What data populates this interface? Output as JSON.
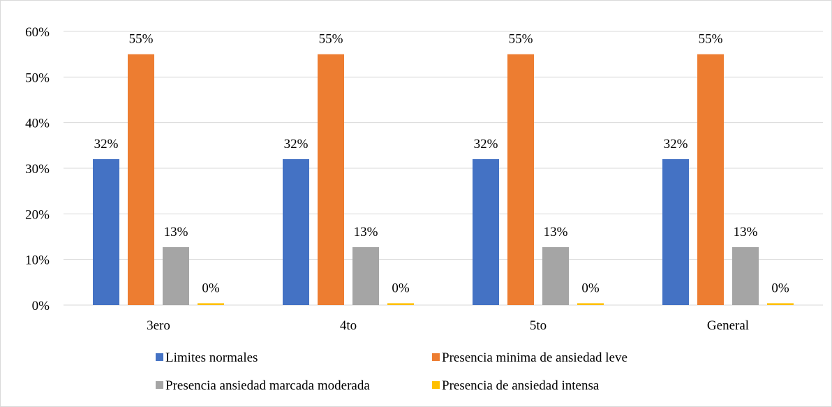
{
  "chart_data": {
    "type": "bar",
    "categories": [
      "3ero",
      "4to",
      "5to",
      "General"
    ],
    "series": [
      {
        "name": "Limites normales",
        "color": "#4472c4",
        "values": [
          32,
          32,
          32,
          32
        ],
        "labels": [
          "32%",
          "32%",
          "32%",
          "32%"
        ]
      },
      {
        "name": "Presencia minima de ansiedad leve",
        "color": "#ed7d31",
        "values": [
          55,
          55,
          55,
          55
        ],
        "labels": [
          "55%",
          "55%",
          "55%",
          "55%"
        ]
      },
      {
        "name": "Presencia ansiedad marcada moderada",
        "color": "#a5a5a5",
        "values": [
          12.7,
          12.7,
          12.7,
          12.7
        ],
        "labels": [
          "13%",
          "13%",
          "13%",
          "13%"
        ]
      },
      {
        "name": "Presencia de ansiedad intensa",
        "color": "#ffc000",
        "values": [
          0.4,
          0.4,
          0.4,
          0.4
        ],
        "labels": [
          "0%",
          "0%",
          "0%",
          "0%"
        ]
      }
    ],
    "ylim": [
      0,
      60
    ],
    "yticks": [
      0,
      10,
      20,
      30,
      40,
      50,
      60
    ],
    "ytick_labels": [
      "0%",
      "10%",
      "20%",
      "30%",
      "40%",
      "50%",
      "60%"
    ],
    "grid": true,
    "legend_position": "bottom",
    "xlabel": "",
    "ylabel": "",
    "title": ""
  }
}
